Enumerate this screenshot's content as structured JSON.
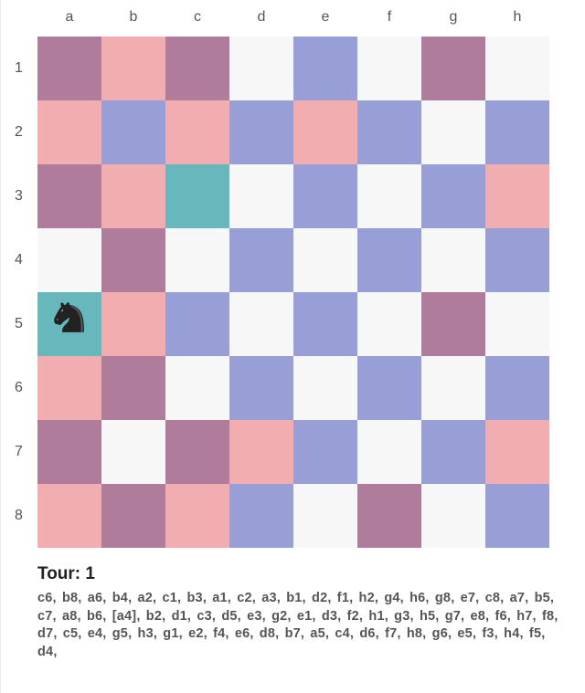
{
  "columns": [
    "a",
    "b",
    "c",
    "d",
    "e",
    "f",
    "g",
    "h"
  ],
  "rows": [
    "1",
    "2",
    "3",
    "4",
    "5",
    "6",
    "7",
    "8"
  ],
  "colors": {
    "white": "#f7f7f7",
    "blue": "#979fd6",
    "pink": "#f1adb0",
    "mauve": "#b07c9c",
    "teal": "#67b8bc",
    "piece": "#222222"
  },
  "board": [
    [
      "m",
      "p",
      "m",
      "w",
      "b",
      "w",
      "m",
      "w"
    ],
    [
      "p",
      "b",
      "p",
      "b",
      "p",
      "b",
      "w",
      "b"
    ],
    [
      "m",
      "p",
      "t",
      "w",
      "b",
      "w",
      "b",
      "p"
    ],
    [
      "w",
      "m",
      "w",
      "b",
      "w",
      "b",
      "w",
      "b"
    ],
    [
      "t",
      "p",
      "b",
      "w",
      "b",
      "w",
      "m",
      "w"
    ],
    [
      "p",
      "m",
      "w",
      "b",
      "w",
      "b",
      "w",
      "b"
    ],
    [
      "m",
      "w",
      "m",
      "p",
      "b",
      "w",
      "b",
      "p"
    ],
    [
      "p",
      "m",
      "p",
      "b",
      "w",
      "m",
      "w",
      "b"
    ]
  ],
  "piece": {
    "type": "knight-icon",
    "square": "a5"
  },
  "status": {
    "turn_label": "Tour: 1"
  },
  "moves_text": "c6, b8, a6, b4, a2, c1, b3, a1, c2, a3, b1, d2, f1, h2, g4, h6, g8, e7, c8, a7, b5, c7, a8, b6, [a4], b2, d1, c3, d5, e3, g2, e1, d3, f2, h1, g3, h5, g7, e8, f6, h7, f8, d7, c5, e4, g5, h3, g1, e2, f4, e6, d8, b7, a5, c4, d6, f7, h8, g6, e5, f3, h4, f5, d4,"
}
